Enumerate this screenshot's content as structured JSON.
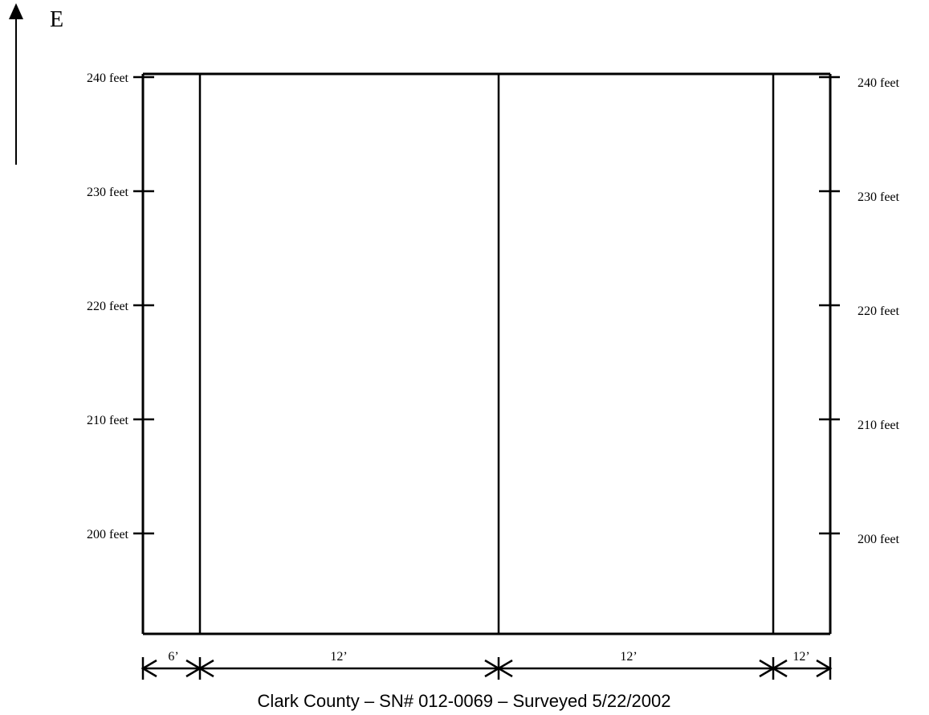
{
  "compass": {
    "direction_label": "E"
  },
  "axis": {
    "unit": "feet",
    "ticks": [
      {
        "value": 240,
        "label": "240 feet"
      },
      {
        "value": 230,
        "label": "230 feet"
      },
      {
        "value": 220,
        "label": "220 feet"
      },
      {
        "value": 210,
        "label": "210 feet"
      },
      {
        "value": 200,
        "label": "200 feet"
      }
    ]
  },
  "lanes": [
    {
      "width_label": "6’"
    },
    {
      "width_label": "12’"
    },
    {
      "width_label": "12’"
    },
    {
      "width_label": "12’"
    }
  ],
  "caption": "Clark County – SN# 012-0069 – Surveyed 5/22/2002",
  "colors": {
    "line": "#000000",
    "background": "#ffffff"
  }
}
